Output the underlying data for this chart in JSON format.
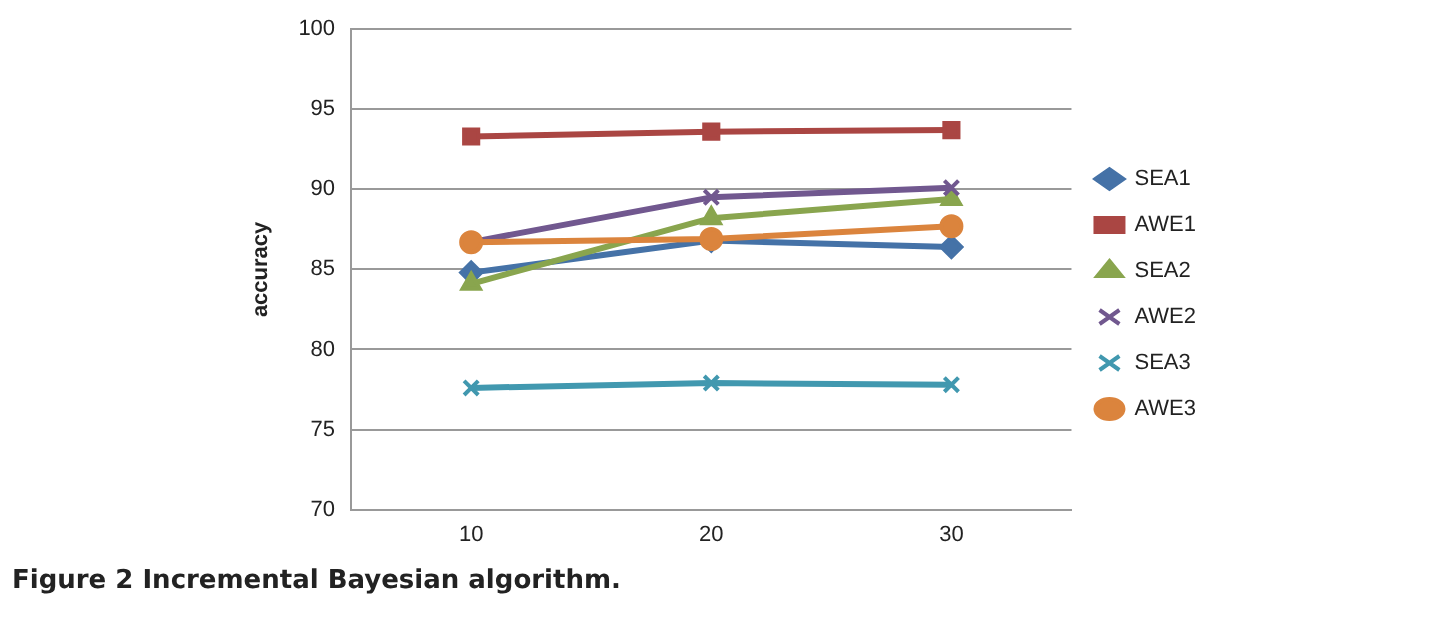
{
  "chart_data": {
    "type": "line",
    "ylabel": "accuracy",
    "categories": [
      "10",
      "20",
      "30"
    ],
    "series": [
      {
        "name": "SEA1",
        "color": "#4572a7",
        "marker": "diamond",
        "values": [
          84.8,
          86.8,
          86.4
        ]
      },
      {
        "name": "AWE1",
        "color": "#aa4643",
        "marker": "square",
        "values": [
          93.3,
          93.6,
          93.7
        ]
      },
      {
        "name": "SEA2",
        "color": "#89a54e",
        "marker": "triangle",
        "values": [
          84.1,
          88.2,
          89.4
        ]
      },
      {
        "name": "AWE2",
        "color": "#71588f",
        "marker": "cross",
        "values": [
          86.7,
          89.5,
          90.1
        ]
      },
      {
        "name": "SEA3",
        "color": "#4198af",
        "marker": "cross",
        "values": [
          77.6,
          77.9,
          77.8
        ]
      },
      {
        "name": "AWE3",
        "color": "#db843d",
        "marker": "circle",
        "values": [
          86.7,
          86.9,
          87.7
        ]
      }
    ],
    "ylim": [
      70,
      100
    ],
    "yticks": [
      70,
      75,
      80,
      85,
      90,
      95,
      100
    ],
    "grid": "y",
    "legend": "right",
    "annotations": [
      "Figure 2 Incremental Bayesian algorithm."
    ]
  }
}
